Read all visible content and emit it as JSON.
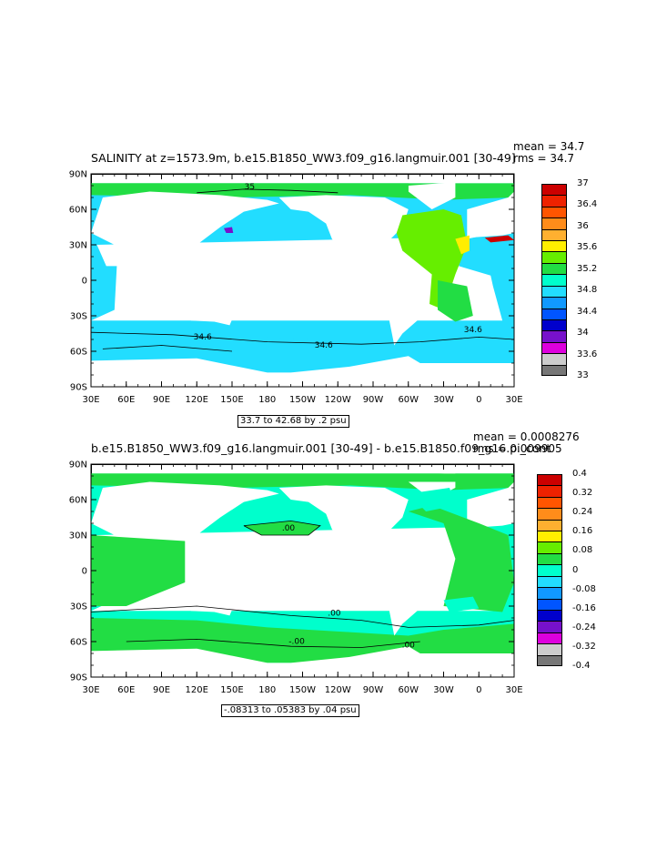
{
  "chart_data": [
    {
      "type": "heatmap",
      "title": "SALINITY at z=1573.9m, b.e15.B1850_WW3.f09_g16.langmuir.001 [30-49]",
      "stats": [
        "mean = 34.7",
        "rms = 34.7"
      ],
      "range_note": "33.7 to 42.68 by .2 psu",
      "x_ticks": [
        "30E",
        "60E",
        "90E",
        "120E",
        "150E",
        "180",
        "150W",
        "120W",
        "90W",
        "60W",
        "30W",
        "0",
        "30E"
      ],
      "y_ticks": [
        "90N",
        "60N",
        "30N",
        "0",
        "30S",
        "60S",
        "90S"
      ],
      "colorbar_labels": [
        "37",
        "36.4",
        "36",
        "35.6",
        "35.2",
        "34.8",
        "34.4",
        "34",
        "33.6",
        "33"
      ],
      "colorbar_colors": [
        "#cc0000",
        "#ee2200",
        "#ff5500",
        "#ff8c1a",
        "#ffb030",
        "#ffee00",
        "#66ee00",
        "#22dd44",
        "#00ffcc",
        "#22ddff",
        "#1199ff",
        "#0055ff",
        "#0000cc",
        "#7711cc",
        "#dd00dd",
        "#cccccc",
        "#777777"
      ],
      "contour_labels": [
        "35",
        "34.6",
        "34.6",
        "34.6"
      ]
    },
    {
      "type": "heatmap",
      "title": "b.e15.B1850_WW3.f09_g16.langmuir.001 [30-49] - b.e15.B1850.f09_g16.pi_cont",
      "stats": [
        "mean = 0.0008276",
        "rms = 0.009905"
      ],
      "range_note": "-.08313 to .05383 by .04 psu",
      "x_ticks": [
        "30E",
        "60E",
        "90E",
        "120E",
        "150E",
        "180",
        "150W",
        "120W",
        "90W",
        "60W",
        "30W",
        "0",
        "30E"
      ],
      "y_ticks": [
        "90N",
        "60N",
        "30N",
        "0",
        "30S",
        "60S",
        "90S"
      ],
      "colorbar_labels": [
        "0.4",
        "0.32",
        "0.24",
        "0.16",
        "0.08",
        "0",
        "-0.08",
        "-0.16",
        "-0.24",
        "-0.32",
        "-0.4"
      ],
      "colorbar_colors": [
        "#cc0000",
        "#ee2200",
        "#ff5500",
        "#ff8c1a",
        "#ffb030",
        "#ffee00",
        "#66ee00",
        "#22dd44",
        "#00ffcc",
        "#22ddff",
        "#1199ff",
        "#0055ff",
        "#0000cc",
        "#7711cc",
        "#dd00dd",
        "#cccccc",
        "#777777"
      ],
      "contour_labels": [
        ".00",
        ".00",
        "-.00",
        ".00"
      ]
    }
  ],
  "colors": {
    "land": "#ffffff",
    "p1_ocean": "#22ddff",
    "p1_atlantic": "#66ee00",
    "p1_mid": "#22dd44",
    "p1_med": "#ffee00",
    "p1_red": "#cc0000",
    "p1_purple": "#7711cc",
    "p2_ocean": "#22dd44",
    "p2_cyan": "#00ffcc"
  }
}
